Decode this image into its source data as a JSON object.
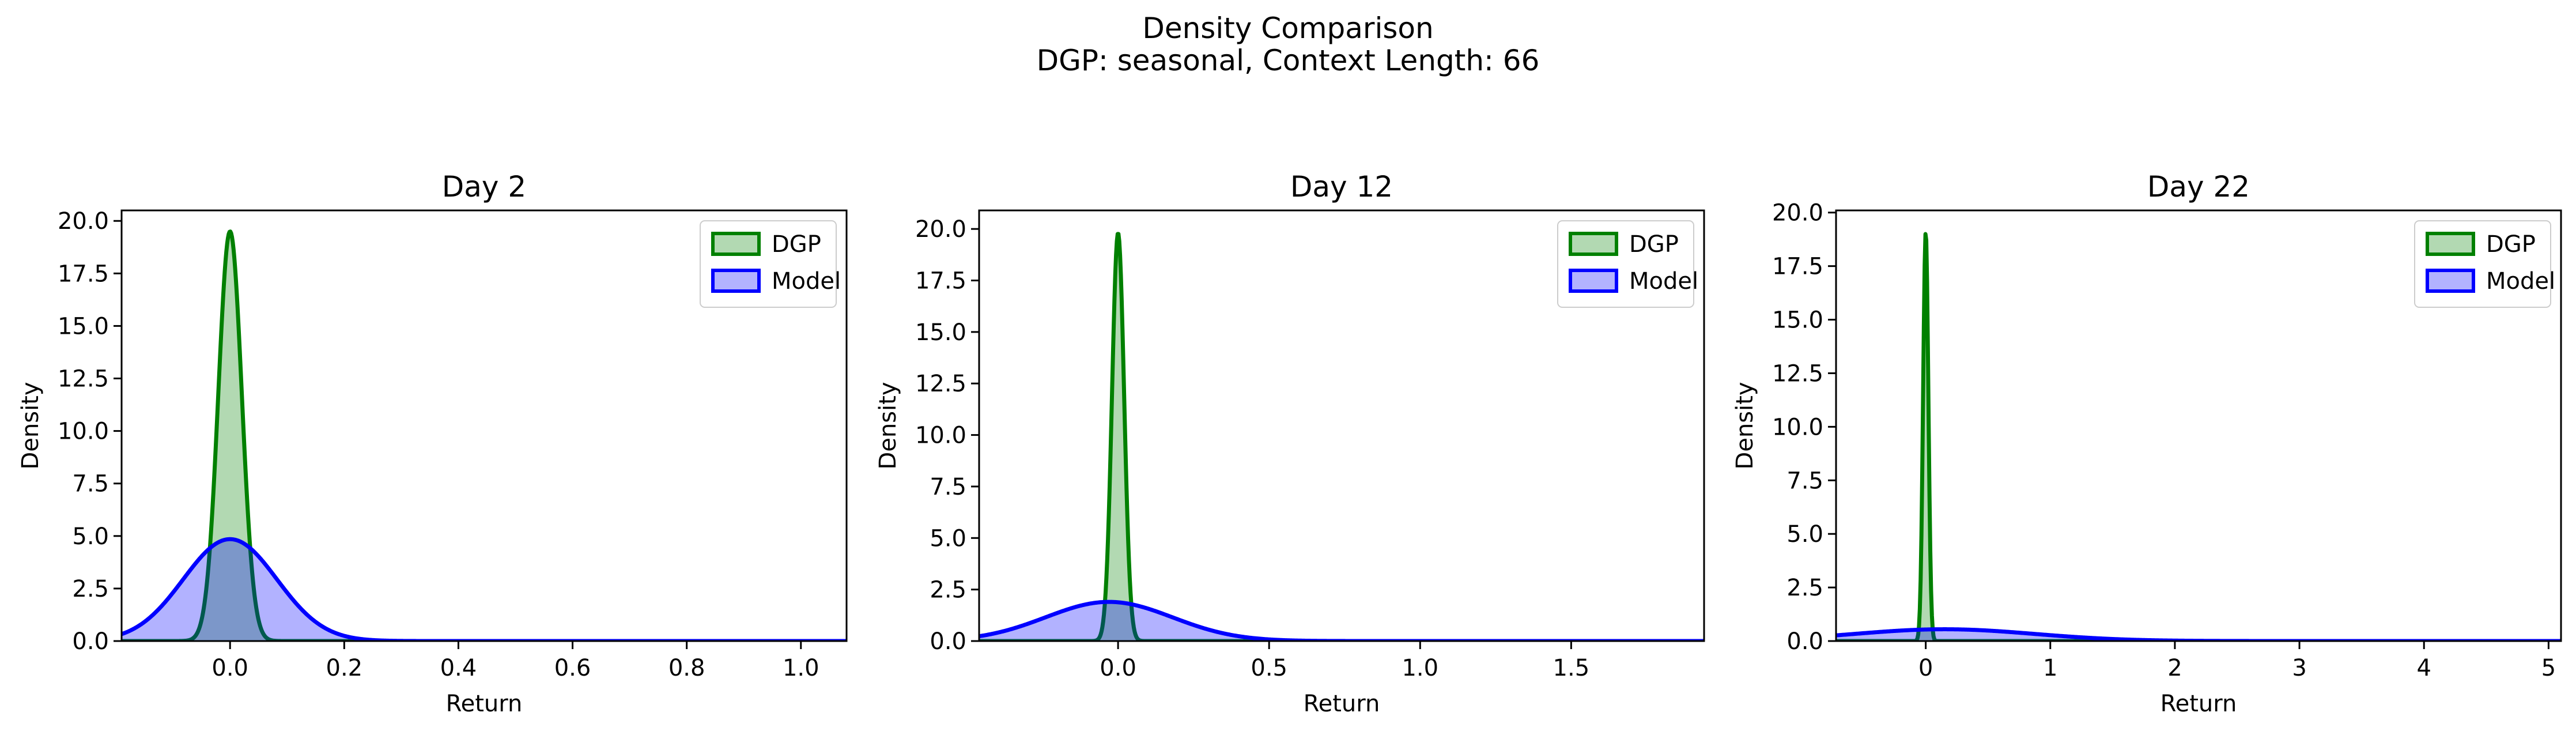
{
  "figure": {
    "title_line1": "Density Comparison",
    "title_line2": "DGP: seasonal, Context Length: 66"
  },
  "colors": {
    "dgp_line": "#008000",
    "dgp_fill": "#008000",
    "model_line": "#0000ff",
    "model_fill": "#0000ff"
  },
  "chart_data": [
    {
      "type": "area",
      "title": "Day 2",
      "xlabel": "Return",
      "ylabel": "Density",
      "xlim": [
        -0.19,
        1.08
      ],
      "ylim": [
        0,
        20.5
      ],
      "xticks": [
        0.0,
        0.2,
        0.4,
        0.6,
        0.8,
        1.0
      ],
      "xtick_labels": [
        "0.0",
        "0.2",
        "0.4",
        "0.6",
        "0.8",
        "1.0"
      ],
      "yticks": [
        0,
        2.5,
        5,
        7.5,
        10,
        12.5,
        15,
        17.5,
        20
      ],
      "ytick_labels": [
        "0.0",
        "2.5",
        "5.0",
        "7.5",
        "10.0",
        "12.5",
        "15.0",
        "17.5",
        "20.0"
      ],
      "legend": {
        "placement": "upper right",
        "entries": [
          "DGP",
          "Model"
        ]
      },
      "series": [
        {
          "name": "DGP",
          "distribution": "normal",
          "mean": 0.0,
          "std": 0.0205,
          "peak": 19.5
        },
        {
          "name": "Model",
          "distribution": "normal",
          "mean": 0.0,
          "std": 0.082,
          "peak": 4.85
        }
      ]
    },
    {
      "type": "area",
      "title": "Day 12",
      "xlabel": "Return",
      "ylabel": "Density",
      "xlim": [
        -0.46,
        1.94
      ],
      "ylim": [
        0,
        20.9
      ],
      "xticks": [
        0.0,
        0.5,
        1.0,
        1.5
      ],
      "xtick_labels": [
        "0.0",
        "0.5",
        "1.0",
        "1.5"
      ],
      "yticks": [
        0,
        2.5,
        5,
        7.5,
        10,
        12.5,
        15,
        17.5,
        20
      ],
      "ytick_labels": [
        "0.0",
        "2.5",
        "5.0",
        "7.5",
        "10.0",
        "12.5",
        "15.0",
        "17.5",
        "20.0"
      ],
      "legend": {
        "placement": "upper right",
        "entries": [
          "DGP",
          "Model"
        ]
      },
      "series": [
        {
          "name": "DGP",
          "distribution": "normal",
          "mean": 0.0,
          "std": 0.02,
          "peak": 19.8
        },
        {
          "name": "Model",
          "distribution": "normal",
          "mean": -0.03,
          "std": 0.21,
          "peak": 1.9
        }
      ]
    },
    {
      "type": "area",
      "title": "Day 22",
      "xlabel": "Return",
      "ylabel": "Density",
      "xlim": [
        -0.72,
        5.1
      ],
      "ylim": [
        0,
        20.1
      ],
      "xticks": [
        0,
        1,
        2,
        3,
        4,
        5
      ],
      "xtick_labels": [
        "0",
        "1",
        "2",
        "3",
        "4",
        "5"
      ],
      "yticks": [
        0,
        2.5,
        5,
        7.5,
        10,
        12.5,
        15,
        17.5,
        20
      ],
      "ytick_labels": [
        "0.0",
        "2.5",
        "5.0",
        "7.5",
        "10.0",
        "12.5",
        "15.0",
        "17.5",
        "20.0"
      ],
      "legend": {
        "placement": "upper right",
        "entries": [
          "DGP",
          "Model"
        ]
      },
      "series": [
        {
          "name": "DGP",
          "distribution": "normal",
          "mean": 0.0,
          "std": 0.021,
          "peak": 19.1
        },
        {
          "name": "Model",
          "distribution": "normal",
          "mean": 0.15,
          "std": 0.72,
          "peak": 0.55
        }
      ]
    }
  ]
}
